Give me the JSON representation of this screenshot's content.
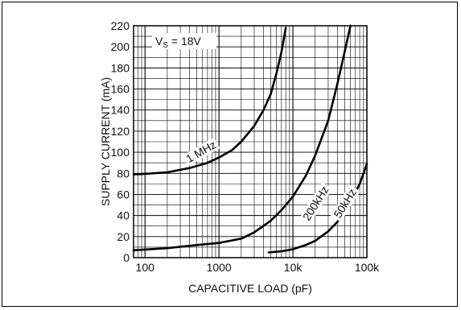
{
  "chart_data": {
    "type": "line",
    "xlabel": "CAPACITIVE LOAD (pF)",
    "ylabel": "SUPPLY CURRENT (mA)",
    "xscale": "log",
    "xlim": [
      70,
      100000
    ],
    "ylim": [
      0,
      220
    ],
    "grid": true,
    "x_tick_labels": [
      "100",
      "1000",
      "10k",
      "100k"
    ],
    "y_tick_labels": [
      "0",
      "20",
      "40",
      "60",
      "80",
      "100",
      "120",
      "140",
      "160",
      "180",
      "200",
      "220"
    ],
    "annotation": {
      "main": "V",
      "sub": "S",
      "rest": " = 18V"
    },
    "series": [
      {
        "name": "1 MHz",
        "x": [
          70,
          100,
          200,
          400,
          700,
          1000,
          1500,
          2000,
          3000,
          4000,
          5000,
          6000,
          7000,
          8000
        ],
        "y": [
          79,
          79.5,
          81,
          85,
          90,
          95,
          102,
          110,
          125,
          140,
          155,
          175,
          195,
          218
        ]
      },
      {
        "name": "200kHz",
        "x": [
          70,
          200,
          500,
          1000,
          2000,
          3000,
          5000,
          7000,
          10000,
          15000,
          20000,
          30000,
          40000,
          50000,
          60000
        ],
        "y": [
          7,
          9,
          12,
          14,
          18,
          24,
          35,
          45,
          58,
          78,
          97,
          130,
          165,
          195,
          220
        ]
      },
      {
        "name": "50kHz",
        "x": [
          4700,
          7000,
          10000,
          15000,
          20000,
          30000,
          40000,
          50000,
          60000,
          70000,
          80000,
          100000
        ],
        "y": [
          5,
          6,
          8,
          12,
          16,
          25,
          34,
          43,
          52,
          62,
          70,
          89
        ]
      }
    ]
  }
}
